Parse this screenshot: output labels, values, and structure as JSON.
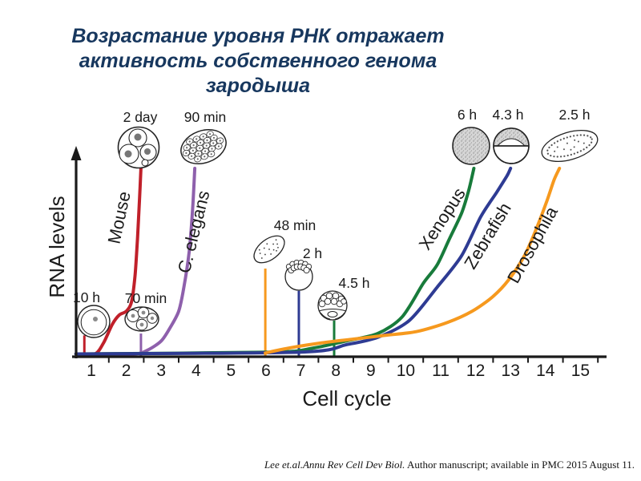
{
  "slide": {
    "title_line1": "Возрастание уровня РНК отражает",
    "title_line2": "активность собственного генома зародыша",
    "title_color": "#17375e",
    "citation_italic": "Lee et.al.Annu Rev Cell Dev Biol.",
    "citation_regular": " Author manuscript; available in PMC 2015 August 11."
  },
  "chart_data": {
    "type": "line",
    "title": "",
    "xlabel": "Cell cycle",
    "ylabel": "RNA levels",
    "x_ticks": [
      "1",
      "2",
      "3",
      "4",
      "5",
      "6",
      "7",
      "8",
      "9",
      "10",
      "11",
      "12",
      "13",
      "14",
      "15"
    ],
    "xlim": [
      0.5,
      15.8
    ],
    "ylim": [
      0,
      100
    ],
    "y_axis_note": "relative RNA level, unlabeled arrow axis",
    "grid": false,
    "legend_position": "labels-along-curves",
    "series": [
      {
        "name": "Mouse",
        "color": "#c0202a",
        "x": [
          0.56,
          1.1,
          1.35,
          1.6,
          1.8,
          2.0,
          2.15,
          2.25,
          2.32,
          2.38,
          2.42
        ],
        "y": [
          0,
          0,
          6,
          16,
          21,
          23,
          28,
          42,
          62,
          84,
          100
        ],
        "early_stage": {
          "label": "10 h",
          "cell": 0.8
        },
        "late_stage": {
          "label": "2 day",
          "cell": 2.42
        },
        "marker": {
          "cell": 0.8,
          "level_top": 10
        }
      },
      {
        "name": "C. elegans",
        "color": "#8e60ac",
        "x": [
          0.56,
          2.2,
          2.6,
          3.0,
          3.25,
          3.5,
          3.65,
          3.8,
          3.9,
          3.96
        ],
        "y": [
          0,
          0,
          2,
          7,
          14,
          23,
          36,
          55,
          78,
          100
        ],
        "early_stage": {
          "label": "70 min",
          "cell": 2.42
        },
        "late_stage": {
          "label": "90 min",
          "cell": 3.96
        },
        "marker": {
          "cell": 2.42,
          "level_top": 11
        }
      },
      {
        "name": "Xenopus",
        "color": "#187b3b",
        "x": [
          0.56,
          6.2,
          7.3,
          8.3,
          9.2,
          9.9,
          10.5,
          10.9,
          11.25,
          11.6,
          11.8,
          11.95
        ],
        "y": [
          0,
          1,
          3,
          7,
          11,
          20,
          38,
          48,
          62,
          76,
          88,
          100
        ],
        "early_stage": {
          "label": "4.5 h",
          "cell": 7.95
        },
        "late_stage": {
          "label": "6 h",
          "cell": 11.95
        },
        "marker": {
          "cell": 7.95,
          "level_top": 18
        }
      },
      {
        "name": "Zebrafish",
        "color": "#2e3b93",
        "x": [
          0.56,
          7.0,
          8.3,
          9.2,
          10.1,
          10.9,
          11.6,
          12.15,
          12.6,
          12.9,
          13.0
        ],
        "y": [
          0,
          1,
          5,
          9,
          18,
          36,
          53,
          74,
          87,
          96,
          100
        ],
        "early_stage": {
          "label": "2 h",
          "cell": 6.94
        },
        "late_stage": {
          "label": "4.3 h",
          "cell": 13.0
        },
        "marker": {
          "cell": 6.94,
          "level_top": 34
        }
      },
      {
        "name": "Drosophila",
        "color": "#f6991e",
        "x": [
          5.98,
          6.6,
          7.6,
          8.5,
          9.4,
          10.3,
          11.2,
          11.9,
          12.5,
          12.95,
          13.4,
          13.75,
          14.05,
          14.25,
          14.4
        ],
        "y": [
          0.5,
          3,
          6,
          8,
          10,
          12,
          17,
          23,
          31,
          40,
          53,
          68,
          83,
          94,
          100
        ],
        "early_stage": {
          "label": "48 min",
          "cell": 5.98
        },
        "late_stage": {
          "label": "2.5 h",
          "cell": 14.4
        },
        "marker": {
          "cell": 5.98,
          "level_top": 46
        }
      }
    ]
  }
}
